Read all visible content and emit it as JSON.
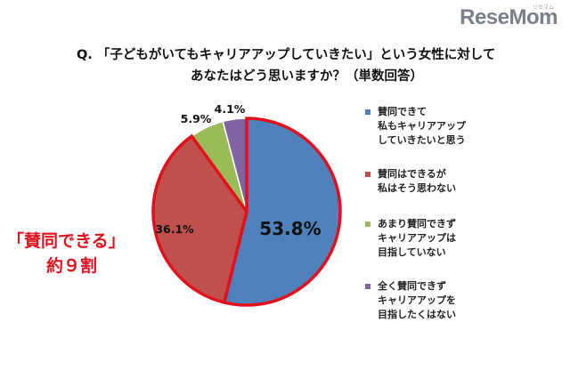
{
  "logo": {
    "name": "ReseMom",
    "sub": "リセマム"
  },
  "question": {
    "line1": "Q. 「子どもがいてもキャリアアップしていきたい」という女性に対して",
    "line2": "あなたはどう思いますか？（単数回答）"
  },
  "callout": {
    "line1": "「賛同できる」",
    "line2": "約９割"
  },
  "colors": {
    "highlight_border": "#e3101c",
    "slice_border": "#ffffff"
  },
  "chart_data": {
    "type": "pie",
    "title": "",
    "slices": [
      {
        "label": "賛同できて\n私もキャリアアップ\nしていきたいと思う",
        "value": 53.8,
        "value_label": "53.8%",
        "color": "#4f81bd"
      },
      {
        "label": "賛同はできるが\n私はそう思わない",
        "value": 36.1,
        "value_label": "36.1%",
        "color": "#c0504d"
      },
      {
        "label": "あまり賛同できず\nキャリアアップは\n目指していない",
        "value": 5.9,
        "value_label": "5.9%",
        "color": "#9bbb59"
      },
      {
        "label": "全く賛同できず\nキャリアアップを\n目指したくはない",
        "value": 4.1,
        "value_label": "4.1%",
        "color": "#8064a2"
      }
    ],
    "highlighted_slices": [
      0,
      1
    ],
    "start": "top, clockwise",
    "legend_position": "right"
  }
}
